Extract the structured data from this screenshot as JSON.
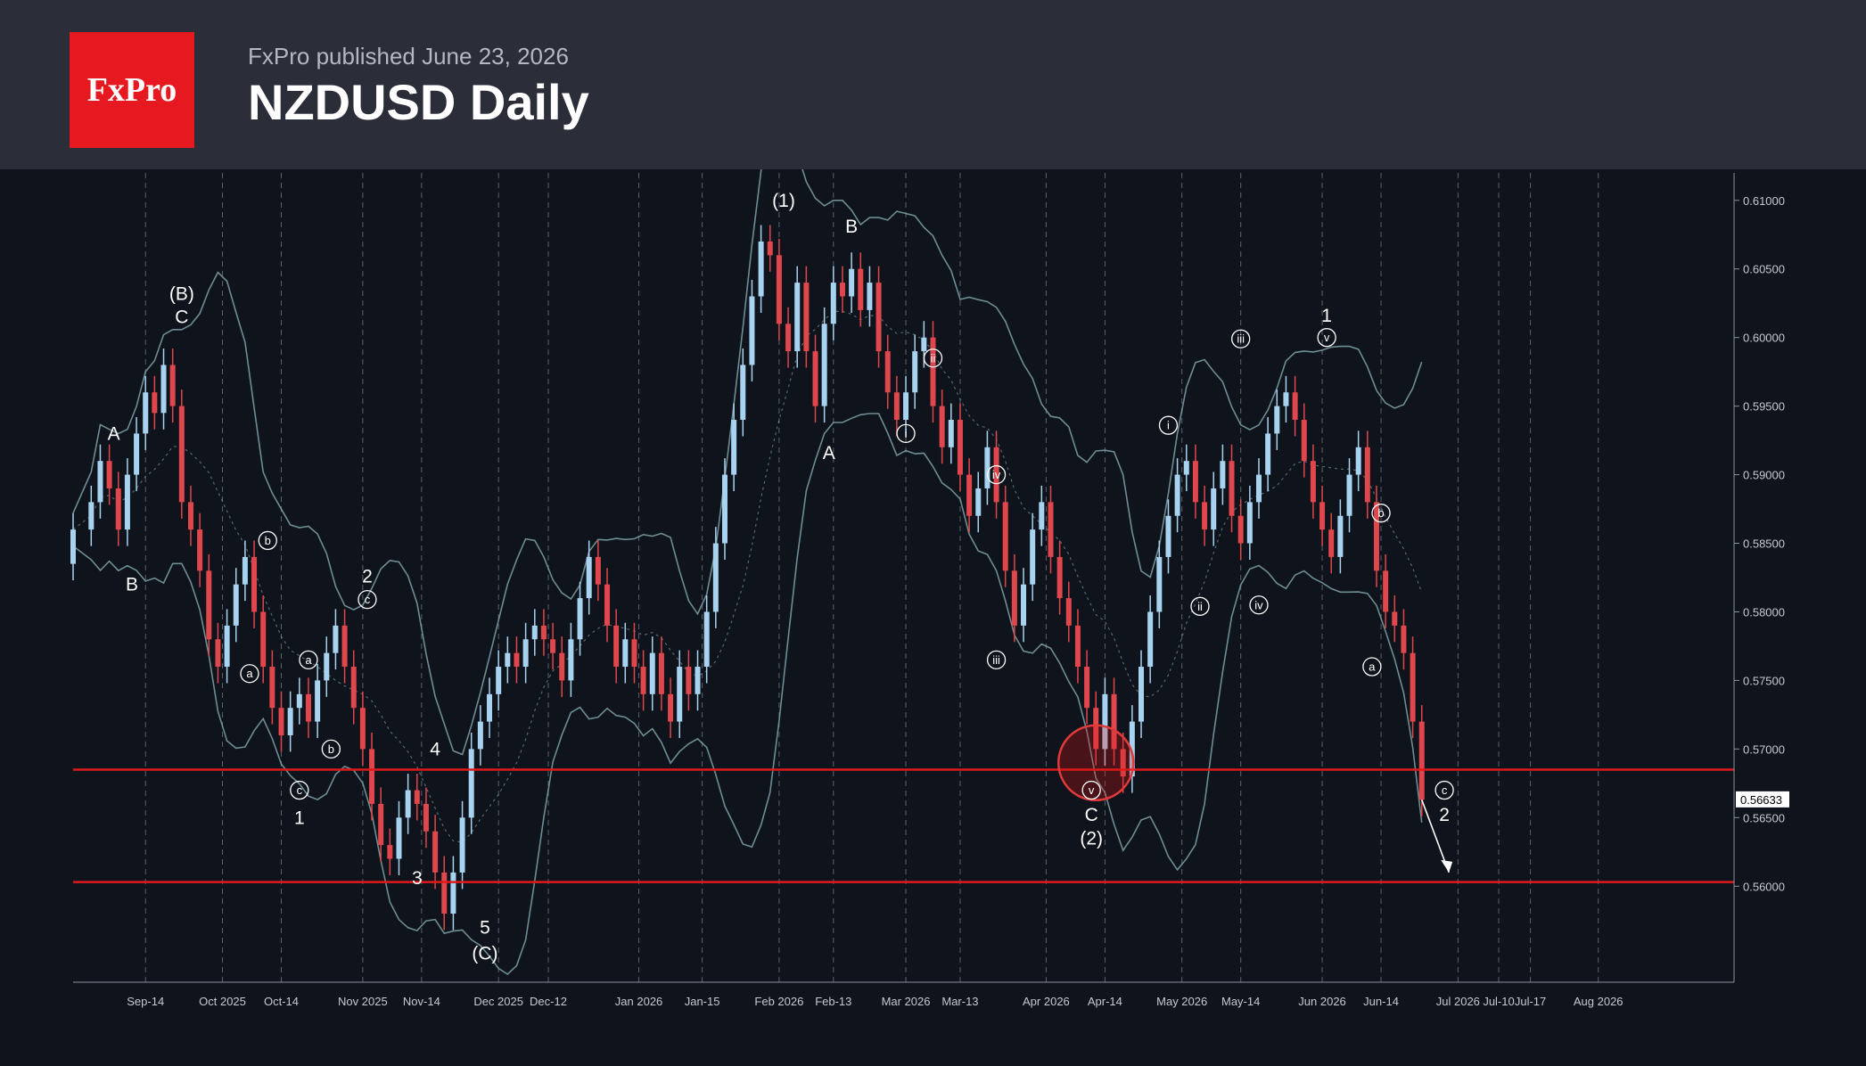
{
  "header": {
    "brand": "FxPro",
    "published": "FxPro published June 23, 2026",
    "title": "NZDUSD Daily"
  },
  "colors": {
    "background": "#0f131b",
    "header": "#2b2e38",
    "brand_red": "#e5191f",
    "bull": "#a8d3f0",
    "bear": "#e0474c",
    "band": "#7fa3a8",
    "level": "#e01a1a",
    "text": "#ffffff",
    "axis_text": "#c5c9d0"
  },
  "chart_data": {
    "type": "candlestick",
    "instrument": "NZDUSD",
    "timeframe": "Daily",
    "ylim": [
      0.553,
      0.612
    ],
    "y_ticks": [
      0.56,
      0.565,
      0.57,
      0.575,
      0.58,
      0.585,
      0.59,
      0.595,
      0.6,
      0.605,
      0.61
    ],
    "y_tick_labels": [
      "0.56000",
      "0.56500",
      "0.57000",
      "0.57500",
      "0.58000",
      "0.58500",
      "0.59000",
      "0.59500",
      "0.60000",
      "0.60500",
      "0.61000"
    ],
    "last_price": "0.56633",
    "x_range": [
      "2025-08-29",
      "2026-08-31"
    ],
    "x_tick_labels": [
      {
        "date": "2025-09-14",
        "label": "Sep-14"
      },
      {
        "date": "2025-10-01",
        "label": "Oct 2025"
      },
      {
        "date": "2025-10-14",
        "label": "Oct-14"
      },
      {
        "date": "2025-11-01",
        "label": "Nov 2025"
      },
      {
        "date": "2025-11-14",
        "label": "Nov-14"
      },
      {
        "date": "2025-12-01",
        "label": "Dec 2025"
      },
      {
        "date": "2025-12-12",
        "label": "Dec-12"
      },
      {
        "date": "2026-01-01",
        "label": "Jan 2026"
      },
      {
        "date": "2026-01-15",
        "label": "Jan-15"
      },
      {
        "date": "2026-02-01",
        "label": "Feb 2026"
      },
      {
        "date": "2026-02-13",
        "label": "Feb-13"
      },
      {
        "date": "2026-03-01",
        "label": "Mar 2026"
      },
      {
        "date": "2026-03-13",
        "label": "Mar-13"
      },
      {
        "date": "2026-04-01",
        "label": "Apr 2026"
      },
      {
        "date": "2026-04-14",
        "label": "Apr-14"
      },
      {
        "date": "2026-05-01",
        "label": "May 2026"
      },
      {
        "date": "2026-05-14",
        "label": "May-14"
      },
      {
        "date": "2026-06-01",
        "label": "Jun 2026"
      },
      {
        "date": "2026-06-14",
        "label": "Jun-14"
      },
      {
        "date": "2026-07-01",
        "label": "Jul 2026"
      },
      {
        "date": "2026-07-10",
        "label": "Jul-10"
      },
      {
        "date": "2026-07-17",
        "label": "Jul-17"
      },
      {
        "date": "2026-08-01",
        "label": "Aug 2026"
      }
    ],
    "gridlines": "vertical dashed at month starts and mid-month",
    "candles_approx": [
      [
        "2025-08-29",
        0.5835,
        0.586
      ],
      [
        "2025-09-02",
        0.586,
        0.588
      ],
      [
        "2025-09-04",
        0.588,
        0.591
      ],
      [
        "2025-09-06",
        0.591,
        0.589
      ],
      [
        "2025-09-08",
        0.589,
        0.586
      ],
      [
        "2025-09-10",
        0.586,
        0.59
      ],
      [
        "2025-09-12",
        0.59,
        0.593
      ],
      [
        "2025-09-14",
        0.593,
        0.596
      ],
      [
        "2025-09-16",
        0.596,
        0.5945
      ],
      [
        "2025-09-18",
        0.5945,
        0.598
      ],
      [
        "2025-09-20",
        0.598,
        0.595
      ],
      [
        "2025-09-22",
        0.595,
        0.588
      ],
      [
        "2025-09-24",
        0.588,
        0.586
      ],
      [
        "2025-09-26",
        0.586,
        0.583
      ],
      [
        "2025-09-28",
        0.583,
        0.578
      ],
      [
        "2025-09-30",
        0.578,
        0.576
      ],
      [
        "2025-10-02",
        0.576,
        0.579
      ],
      [
        "2025-10-04",
        0.579,
        0.582
      ],
      [
        "2025-10-06",
        0.582,
        0.584
      ],
      [
        "2025-10-08",
        0.584,
        0.58
      ],
      [
        "2025-10-10",
        0.58,
        0.576
      ],
      [
        "2025-10-12",
        0.576,
        0.573
      ],
      [
        "2025-10-14",
        0.573,
        0.571
      ],
      [
        "2025-10-16",
        0.571,
        0.573
      ],
      [
        "2025-10-18",
        0.573,
        0.574
      ],
      [
        "2025-10-20",
        0.574,
        0.572
      ],
      [
        "2025-10-22",
        0.572,
        0.575
      ],
      [
        "2025-10-24",
        0.575,
        0.577
      ],
      [
        "2025-10-26",
        0.577,
        0.579
      ],
      [
        "2025-10-28",
        0.579,
        0.576
      ],
      [
        "2025-10-30",
        0.576,
        0.573
      ],
      [
        "2025-11-01",
        0.573,
        0.57
      ],
      [
        "2025-11-03",
        0.57,
        0.566
      ],
      [
        "2025-11-05",
        0.566,
        0.563
      ],
      [
        "2025-11-07",
        0.563,
        0.562
      ],
      [
        "2025-11-09",
        0.562,
        0.565
      ],
      [
        "2025-11-11",
        0.565,
        0.567
      ],
      [
        "2025-11-13",
        0.567,
        0.566
      ],
      [
        "2025-11-15",
        0.566,
        0.564
      ],
      [
        "2025-11-17",
        0.564,
        0.561
      ],
      [
        "2025-11-19",
        0.561,
        0.558
      ],
      [
        "2025-11-21",
        0.558,
        0.561
      ],
      [
        "2025-11-23",
        0.561,
        0.565
      ],
      [
        "2025-11-25",
        0.565,
        0.57
      ],
      [
        "2025-11-27",
        0.57,
        0.572
      ],
      [
        "2025-11-29",
        0.572,
        0.574
      ],
      [
        "2025-12-01",
        0.574,
        0.576
      ],
      [
        "2025-12-03",
        0.576,
        0.577
      ],
      [
        "2025-12-05",
        0.577,
        0.576
      ],
      [
        "2025-12-07",
        0.576,
        0.578
      ],
      [
        "2025-12-09",
        0.578,
        0.579
      ],
      [
        "2025-12-11",
        0.579,
        0.578
      ],
      [
        "2025-12-13",
        0.578,
        0.577
      ],
      [
        "2025-12-15",
        0.577,
        0.575
      ],
      [
        "2025-12-17",
        0.575,
        0.578
      ],
      [
        "2025-12-19",
        0.578,
        0.581
      ],
      [
        "2025-12-21",
        0.581,
        0.584
      ],
      [
        "2025-12-23",
        0.584,
        0.582
      ],
      [
        "2025-12-25",
        0.582,
        0.579
      ],
      [
        "2025-12-27",
        0.579,
        0.576
      ],
      [
        "2025-12-29",
        0.576,
        0.578
      ],
      [
        "2025-12-31",
        0.578,
        0.576
      ],
      [
        "2026-01-02",
        0.576,
        0.574
      ],
      [
        "2026-01-04",
        0.574,
        0.577
      ],
      [
        "2026-01-06",
        0.577,
        0.574
      ],
      [
        "2026-01-08",
        0.574,
        0.572
      ],
      [
        "2026-01-10",
        0.572,
        0.576
      ],
      [
        "2026-01-12",
        0.576,
        0.574
      ],
      [
        "2026-01-14",
        0.574,
        0.576
      ],
      [
        "2026-01-16",
        0.576,
        0.58
      ],
      [
        "2026-01-18",
        0.58,
        0.585
      ],
      [
        "2026-01-20",
        0.585,
        0.59
      ],
      [
        "2026-01-22",
        0.59,
        0.594
      ],
      [
        "2026-01-24",
        0.594,
        0.598
      ],
      [
        "2026-01-26",
        0.598,
        0.603
      ],
      [
        "2026-01-28",
        0.603,
        0.607
      ],
      [
        "2026-01-30",
        0.607,
        0.606
      ],
      [
        "2026-02-01",
        0.606,
        0.601
      ],
      [
        "2026-02-03",
        0.601,
        0.599
      ],
      [
        "2026-02-05",
        0.599,
        0.604
      ],
      [
        "2026-02-07",
        0.604,
        0.599
      ],
      [
        "2026-02-09",
        0.599,
        0.595
      ],
      [
        "2026-02-11",
        0.595,
        0.601
      ],
      [
        "2026-02-13",
        0.601,
        0.604
      ],
      [
        "2026-02-15",
        0.604,
        0.603
      ],
      [
        "2026-02-17",
        0.603,
        0.605
      ],
      [
        "2026-02-19",
        0.605,
        0.602
      ],
      [
        "2026-02-21",
        0.602,
        0.604
      ],
      [
        "2026-02-23",
        0.604,
        0.599
      ],
      [
        "2026-02-25",
        0.599,
        0.596
      ],
      [
        "2026-02-27",
        0.596,
        0.594
      ],
      [
        "2026-03-01",
        0.594,
        0.596
      ],
      [
        "2026-03-03",
        0.596,
        0.599
      ],
      [
        "2026-03-05",
        0.599,
        0.6
      ],
      [
        "2026-03-07",
        0.6,
        0.595
      ],
      [
        "2026-03-09",
        0.595,
        0.592
      ],
      [
        "2026-03-11",
        0.592,
        0.594
      ],
      [
        "2026-03-13",
        0.594,
        0.59
      ],
      [
        "2026-03-15",
        0.59,
        0.587
      ],
      [
        "2026-03-17",
        0.587,
        0.589
      ],
      [
        "2026-03-19",
        0.589,
        0.592
      ],
      [
        "2026-03-21",
        0.592,
        0.588
      ],
      [
        "2026-03-23",
        0.588,
        0.583
      ],
      [
        "2026-03-25",
        0.583,
        0.579
      ],
      [
        "2026-03-27",
        0.579,
        0.582
      ],
      [
        "2026-03-29",
        0.582,
        0.586
      ],
      [
        "2026-03-31",
        0.586,
        0.588
      ],
      [
        "2026-04-02",
        0.588,
        0.584
      ],
      [
        "2026-04-04",
        0.584,
        0.581
      ],
      [
        "2026-04-06",
        0.581,
        0.579
      ],
      [
        "2026-04-08",
        0.579,
        0.576
      ],
      [
        "2026-04-10",
        0.576,
        0.573
      ],
      [
        "2026-04-12",
        0.573,
        0.57
      ],
      [
        "2026-04-14",
        0.57,
        0.574
      ],
      [
        "2026-04-16",
        0.574,
        0.57
      ],
      [
        "2026-04-18",
        0.57,
        0.568
      ],
      [
        "2026-04-20",
        0.568,
        0.572
      ],
      [
        "2026-04-22",
        0.572,
        0.576
      ],
      [
        "2026-04-24",
        0.576,
        0.58
      ],
      [
        "2026-04-26",
        0.58,
        0.584
      ],
      [
        "2026-04-28",
        0.584,
        0.587
      ],
      [
        "2026-04-30",
        0.587,
        0.59
      ],
      [
        "2026-05-02",
        0.59,
        0.591
      ],
      [
        "2026-05-04",
        0.591,
        0.588
      ],
      [
        "2026-05-06",
        0.588,
        0.586
      ],
      [
        "2026-05-08",
        0.586,
        0.589
      ],
      [
        "2026-05-10",
        0.589,
        0.591
      ],
      [
        "2026-05-12",
        0.591,
        0.587
      ],
      [
        "2026-05-14",
        0.587,
        0.585
      ],
      [
        "2026-05-16",
        0.585,
        0.588
      ],
      [
        "2026-05-18",
        0.588,
        0.59
      ],
      [
        "2026-05-20",
        0.59,
        0.593
      ],
      [
        "2026-05-22",
        0.593,
        0.595
      ],
      [
        "2026-05-24",
        0.595,
        0.596
      ],
      [
        "2026-05-26",
        0.596,
        0.594
      ],
      [
        "2026-05-28",
        0.594,
        0.591
      ],
      [
        "2026-05-30",
        0.591,
        0.588
      ],
      [
        "2026-06-01",
        0.588,
        0.586
      ],
      [
        "2026-06-03",
        0.586,
        0.584
      ],
      [
        "2026-06-05",
        0.584,
        0.587
      ],
      [
        "2026-06-07",
        0.587,
        0.59
      ],
      [
        "2026-06-09",
        0.59,
        0.592
      ],
      [
        "2026-06-11",
        0.592,
        0.588
      ],
      [
        "2026-06-13",
        0.588,
        0.583
      ],
      [
        "2026-06-15",
        0.583,
        0.58
      ],
      [
        "2026-06-17",
        0.58,
        0.579
      ],
      [
        "2026-06-19",
        0.579,
        0.577
      ],
      [
        "2026-06-21",
        0.577,
        0.572
      ],
      [
        "2026-06-23",
        0.572,
        0.5663
      ]
    ],
    "projection": {
      "from": [
        "2026-06-23",
        0.5663
      ],
      "to": [
        "2026-06-29",
        0.561
      ]
    },
    "horizontal_levels": [
      0.5685,
      0.5603
    ],
    "highlight": {
      "date": "2026-04-12",
      "price": 0.569,
      "style": "red circle"
    },
    "annotations": [
      {
        "text": "A",
        "date": "2025-09-07",
        "price": 0.593,
        "plain": true
      },
      {
        "text": "B",
        "date": "2025-09-11",
        "price": 0.582,
        "plain": true
      },
      {
        "text": "(B)",
        "date": "2025-09-22",
        "price": 0.6032,
        "plain": true
      },
      {
        "text": "C",
        "date": "2025-09-22",
        "price": 0.6015,
        "plain": true
      },
      {
        "text": "a",
        "date": "2025-10-07",
        "price": 0.5755,
        "circled": true
      },
      {
        "text": "b",
        "date": "2025-10-11",
        "price": 0.5852,
        "circled": true
      },
      {
        "text": "a",
        "date": "2025-10-20",
        "price": 0.5765,
        "circled": true
      },
      {
        "text": "c",
        "date": "2025-10-18",
        "price": 0.567,
        "circled": true
      },
      {
        "text": "1",
        "date": "2025-10-18",
        "price": 0.565,
        "plain": true
      },
      {
        "text": "b",
        "date": "2025-10-25",
        "price": 0.57,
        "circled": true
      },
      {
        "text": "2",
        "date": "2025-11-02",
        "price": 0.5826,
        "plain": true
      },
      {
        "text": "c",
        "date": "2025-11-02",
        "price": 0.5809,
        "circled": true
      },
      {
        "text": "4",
        "date": "2025-11-17",
        "price": 0.57,
        "plain": true
      },
      {
        "text": "3",
        "date": "2025-11-13",
        "price": 0.5606,
        "plain": true
      },
      {
        "text": "5",
        "date": "2025-11-28",
        "price": 0.557,
        "plain": true
      },
      {
        "text": "(C)",
        "date": "2025-11-28",
        "price": 0.5551,
        "plain": true
      },
      {
        "text": "(1)",
        "date": "2026-02-02",
        "price": 0.61,
        "plain": true
      },
      {
        "text": "B",
        "date": "2026-02-17",
        "price": 0.6081,
        "plain": true
      },
      {
        "text": "A",
        "date": "2026-02-12",
        "price": 0.5916,
        "plain": true
      },
      {
        "text": "i",
        "date": "2026-03-01",
        "price": 0.593,
        "circled": true
      },
      {
        "text": "ii",
        "date": "2026-03-07",
        "price": 0.5985,
        "circled": true
      },
      {
        "text": "iv",
        "date": "2026-03-21",
        "price": 0.59,
        "circled": true
      },
      {
        "text": "iii",
        "date": "2026-03-21",
        "price": 0.5765,
        "circled": true
      },
      {
        "text": "v",
        "date": "2026-04-11",
        "price": 0.567,
        "circled": true
      },
      {
        "text": "C",
        "date": "2026-04-11",
        "price": 0.5652,
        "plain": true
      },
      {
        "text": "(2)",
        "date": "2026-04-11",
        "price": 0.5635,
        "plain": true
      },
      {
        "text": "i",
        "date": "2026-04-28",
        "price": 0.5936,
        "circled": true
      },
      {
        "text": "ii",
        "date": "2026-05-05",
        "price": 0.5804,
        "circled": true
      },
      {
        "text": "iii",
        "date": "2026-05-14",
        "price": 0.5999,
        "circled": true
      },
      {
        "text": "iv",
        "date": "2026-05-18",
        "price": 0.5805,
        "circled": true
      },
      {
        "text": "1",
        "date": "2026-06-02",
        "price": 0.6016,
        "plain": true
      },
      {
        "text": "v",
        "date": "2026-06-02",
        "price": 0.6,
        "circled": true
      },
      {
        "text": "b",
        "date": "2026-06-14",
        "price": 0.5872,
        "circled": true
      },
      {
        "text": "a",
        "date": "2026-06-12",
        "price": 0.576,
        "circled": true
      },
      {
        "text": "c",
        "date": "2026-06-28",
        "price": 0.567,
        "circled": true
      },
      {
        "text": "2",
        "date": "2026-06-28",
        "price": 0.5652,
        "plain": true
      }
    ]
  }
}
